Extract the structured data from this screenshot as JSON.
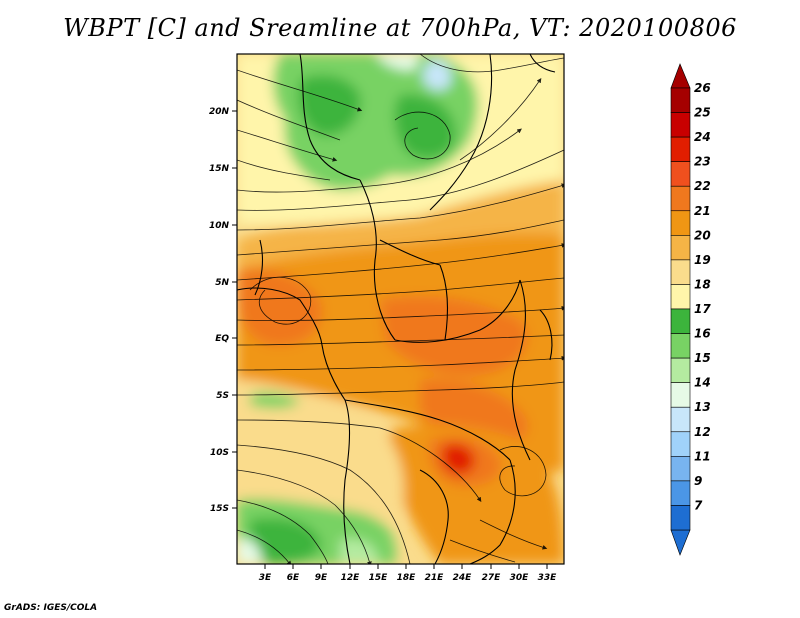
{
  "title": "WBPT [C] and Sreamline at 700hPa, VT: 2020100806",
  "footer": "GrADS: IGES/COLA",
  "map": {
    "lat_labels": [
      "20N",
      "15N",
      "10N",
      "5N",
      "EQ",
      "5S",
      "10S",
      "15S"
    ],
    "lon_labels": [
      "3E",
      "6E",
      "9E",
      "12E",
      "15E",
      "18E",
      "21E",
      "24E",
      "27E",
      "30E",
      "33E"
    ]
  },
  "colorbar": {
    "levels": [
      "26",
      "25",
      "24",
      "23",
      "22",
      "21",
      "20",
      "19",
      "18",
      "17",
      "16",
      "15",
      "14",
      "13",
      "12",
      "11",
      "9",
      "7"
    ],
    "colors": [
      "#a50000",
      "#c80000",
      "#e11e00",
      "#f0501e",
      "#f0781e",
      "#f09614",
      "#f5b446",
      "#fadc8c",
      "#fff5aa",
      "#3cb43c",
      "#78d264",
      "#b4eba0",
      "#e6fae6",
      "#c8e6fa",
      "#a0d2fa",
      "#78b4f0",
      "#4b96e6",
      "#1e6ed2"
    ],
    "top_arrow_color": "#a50000",
    "bottom_arrow_color": "#1e6ed2"
  }
}
